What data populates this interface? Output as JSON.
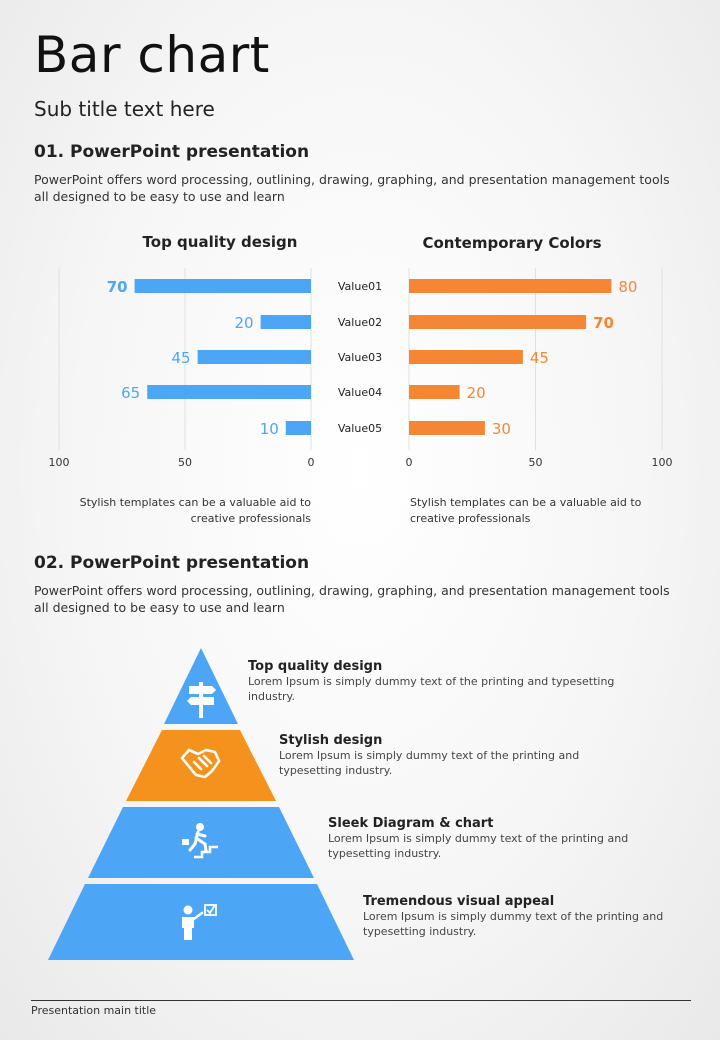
{
  "page": {
    "title": "Bar chart",
    "subtitle": "Sub title text here",
    "footer": "Presentation main title"
  },
  "section1": {
    "heading": "01. PowerPoint presentation",
    "body": "PowerPoint offers word processing, outlining, drawing, graphing, and presentation management tools all designed to be easy to use and learn"
  },
  "section2": {
    "heading": "02. PowerPoint presentation",
    "body": "PowerPoint offers word processing, outlining, drawing, graphing, and presentation management tools all designed to be easy to use and learn"
  },
  "colors": {
    "blue": "#4DA6F5",
    "orange": "#F58634"
  },
  "chart_data": [
    {
      "type": "bar",
      "orientation": "horizontal",
      "direction": "right-to-left",
      "title": "Top quality design",
      "categories": [
        "Value01",
        "Value02",
        "Value03",
        "Value04",
        "Value05"
      ],
      "values": [
        70,
        20,
        45,
        65,
        10
      ],
      "highlight_index": 0,
      "xlim": [
        0,
        100
      ],
      "xticks": [
        100,
        50,
        0
      ],
      "grid": true,
      "color": "#4DA6F5",
      "caption": "Stylish templates can be a valuable aid to creative professionals"
    },
    {
      "type": "bar",
      "orientation": "horizontal",
      "direction": "left-to-right",
      "title": "Contemporary Colors",
      "categories": [
        "Value01",
        "Value02",
        "Value03",
        "Value04",
        "Value05"
      ],
      "values": [
        80,
        70,
        45,
        20,
        30
      ],
      "highlight_index": 1,
      "xlim": [
        0,
        100
      ],
      "xticks": [
        0,
        50,
        100
      ],
      "grid": true,
      "color": "#F58634",
      "caption": "Stylish templates can be a valuable aid to creative professionals"
    }
  ],
  "pyramid": [
    {
      "title": "Top quality design",
      "text": "Lorem Ipsum is simply dummy text of the printing and typesetting industry.",
      "color": "#4DA6F5",
      "icon": "signpost-icon"
    },
    {
      "title": "Stylish design",
      "text": "Lorem Ipsum is simply dummy text of the printing and typesetting industry.",
      "color": "#F5921E",
      "icon": "handshake-icon"
    },
    {
      "title": "Sleek Diagram & chart",
      "text": "Lorem Ipsum is simply dummy text of the printing and typesetting industry.",
      "color": "#4DA6F5",
      "icon": "climbing-stairs-icon"
    },
    {
      "title": "Tremendous visual appeal",
      "text": "Lorem Ipsum is simply dummy text of the printing and typesetting industry.",
      "color": "#4DA6F5",
      "icon": "presenter-checklist-icon"
    }
  ]
}
